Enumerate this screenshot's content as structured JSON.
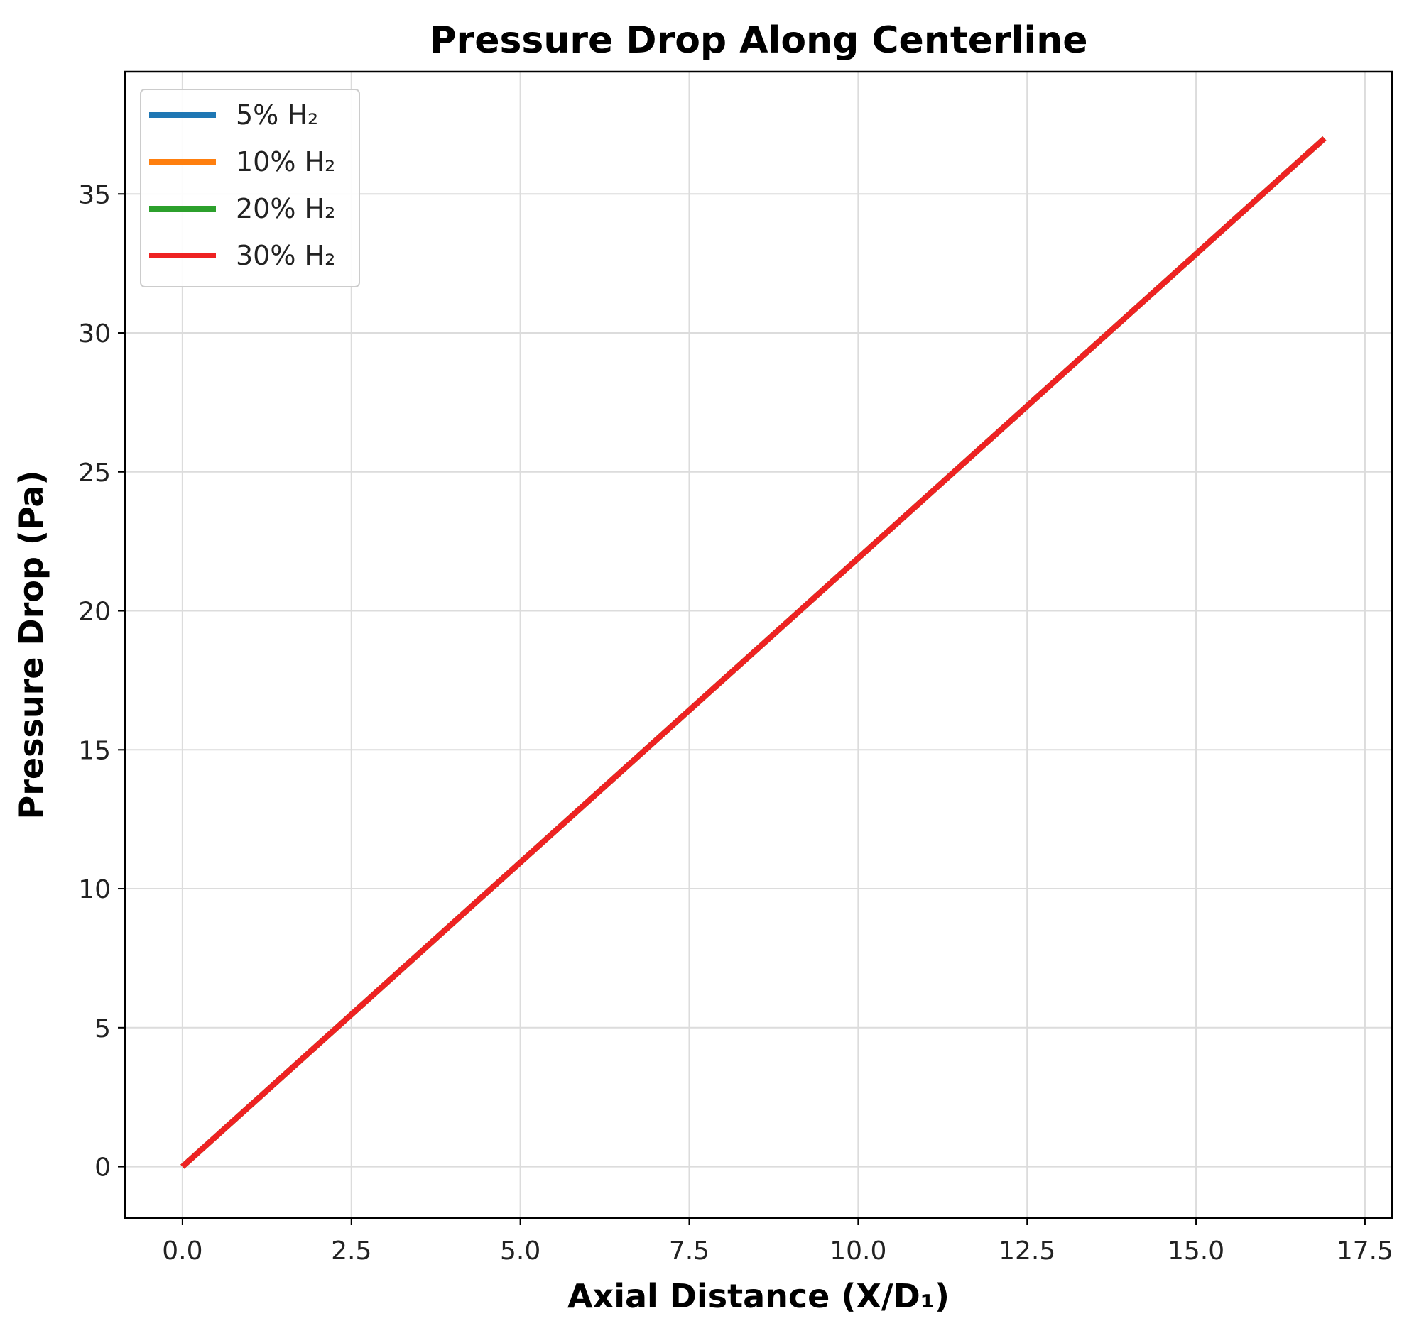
{
  "chart_data": {
    "type": "line",
    "title": "Pressure Drop Along Centerline",
    "xlabel": "Axial Distance (X/D₁)",
    "ylabel": "Pressure Drop (Pa)",
    "xlim": [
      -0.85,
      17.9
    ],
    "ylim": [
      -1.85,
      39.4
    ],
    "grid": true,
    "legend_position": "top-left",
    "x_ticks": [
      0.0,
      2.5,
      5.0,
      7.5,
      10.0,
      12.5,
      15.0,
      17.5
    ],
    "x_tick_labels": [
      "0.0",
      "2.5",
      "5.0",
      "7.5",
      "10.0",
      "12.5",
      "15.0",
      "17.5"
    ],
    "y_ticks": [
      0,
      5,
      10,
      15,
      20,
      25,
      30,
      35
    ],
    "y_tick_labels": [
      "0",
      "5",
      "10",
      "15",
      "20",
      "25",
      "30",
      "35"
    ],
    "series": [
      {
        "name": "5% H₂",
        "color": "#1f77b4",
        "x": [
          0.0,
          16.9
        ],
        "y": [
          0.0,
          37.0
        ]
      },
      {
        "name": "10% H₂",
        "color": "#ff7f0e",
        "x": [
          0.0,
          16.9
        ],
        "y": [
          0.0,
          37.0
        ]
      },
      {
        "name": "20% H₂",
        "color": "#2ca02c",
        "x": [
          0.0,
          16.9
        ],
        "y": [
          0.0,
          37.0
        ]
      },
      {
        "name": "30% H₂",
        "color": "#ee2222",
        "x": [
          0.0,
          16.9
        ],
        "y": [
          0.0,
          37.0
        ]
      }
    ]
  }
}
